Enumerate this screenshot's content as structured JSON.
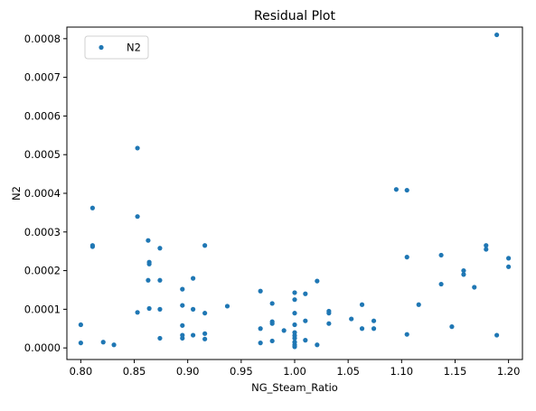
{
  "chart_data": {
    "type": "scatter",
    "title": "Residual Plot",
    "xlabel": "NG_Steam_Ratio",
    "ylabel": "N2",
    "xlim": [
      0.787,
      1.213
    ],
    "ylim": [
      -3e-05,
      0.00083
    ],
    "xticks": [
      0.8,
      0.85,
      0.9,
      0.95,
      1.0,
      1.05,
      1.1,
      1.15,
      1.2
    ],
    "xtick_labels": [
      "0.80",
      "0.85",
      "0.90",
      "0.95",
      "1.00",
      "1.05",
      "1.10",
      "1.15",
      "1.20"
    ],
    "yticks": [
      0.0,
      0.0001,
      0.0002,
      0.0003,
      0.0004,
      0.0005,
      0.0006,
      0.0007,
      0.0008
    ],
    "ytick_labels": [
      "0.0000",
      "0.0001",
      "0.0002",
      "0.0003",
      "0.0004",
      "0.0005",
      "0.0006",
      "0.0007",
      "0.0008"
    ],
    "grid": false,
    "legend_position": "top-left",
    "series": [
      {
        "name": "N2",
        "color": "#1f77b4",
        "points": [
          [
            0.8,
            6e-05
          ],
          [
            0.8,
            1.3e-05
          ],
          [
            0.811,
            0.000362
          ],
          [
            0.811,
            0.000265
          ],
          [
            0.811,
            0.000262
          ],
          [
            0.821,
            1.5e-05
          ],
          [
            0.831,
            8e-06
          ],
          [
            0.853,
            0.000517
          ],
          [
            0.853,
            0.00034
          ],
          [
            0.853,
            9.2e-05
          ],
          [
            0.863,
            0.000278
          ],
          [
            0.864,
            0.000222
          ],
          [
            0.864,
            0.000217
          ],
          [
            0.863,
            0.000175
          ],
          [
            0.864,
            0.000102
          ],
          [
            0.874,
            0.000258
          ],
          [
            0.874,
            0.000175
          ],
          [
            0.874,
            0.0001
          ],
          [
            0.874,
            2.5e-05
          ],
          [
            0.895,
            0.000152
          ],
          [
            0.895,
            0.00011
          ],
          [
            0.895,
            5.8e-05
          ],
          [
            0.895,
            3.3e-05
          ],
          [
            0.895,
            2.5e-05
          ],
          [
            0.905,
            0.00018
          ],
          [
            0.905,
            0.0001
          ],
          [
            0.905,
            3.3e-05
          ],
          [
            0.916,
            0.000265
          ],
          [
            0.916,
            9e-05
          ],
          [
            0.916,
            3.7e-05
          ],
          [
            0.916,
            2.3e-05
          ],
          [
            0.937,
            0.000108
          ],
          [
            0.968,
            0.000147
          ],
          [
            0.968,
            5e-05
          ],
          [
            0.968,
            1.3e-05
          ],
          [
            0.979,
            0.000115
          ],
          [
            0.979,
            6.8e-05
          ],
          [
            0.979,
            6.3e-05
          ],
          [
            0.979,
            1.8e-05
          ],
          [
            0.99,
            4.5e-05
          ],
          [
            1.0,
            0.000143
          ],
          [
            1.0,
            0.000125
          ],
          [
            1.0,
            9e-05
          ],
          [
            1.0,
            6e-05
          ],
          [
            1.0,
            4e-05
          ],
          [
            1.0,
            3.2e-05
          ],
          [
            1.0,
            2.5e-05
          ],
          [
            1.0,
            1.5e-05
          ],
          [
            1.0,
            8e-06
          ],
          [
            1.0,
            3e-06
          ],
          [
            1.01,
            0.00014
          ],
          [
            1.01,
            7e-05
          ],
          [
            1.01,
            2e-05
          ],
          [
            1.021,
            0.000173
          ],
          [
            1.021,
            8e-06
          ],
          [
            1.032,
            9.5e-05
          ],
          [
            1.032,
            9e-05
          ],
          [
            1.032,
            6.3e-05
          ],
          [
            1.053,
            7.5e-05
          ],
          [
            1.063,
            0.000112
          ],
          [
            1.063,
            5e-05
          ],
          [
            1.074,
            7e-05
          ],
          [
            1.074,
            5e-05
          ],
          [
            1.095,
            0.00041
          ],
          [
            1.105,
            0.000408
          ],
          [
            1.105,
            0.000235
          ],
          [
            1.105,
            3.5e-05
          ],
          [
            1.116,
            0.000112
          ],
          [
            1.137,
            0.00024
          ],
          [
            1.137,
            0.000165
          ],
          [
            1.147,
            5.5e-05
          ],
          [
            1.158,
            0.0002
          ],
          [
            1.158,
            0.00019
          ],
          [
            1.168,
            0.000157
          ],
          [
            1.179,
            0.000265
          ],
          [
            1.179,
            0.000255
          ],
          [
            1.189,
            0.00081
          ],
          [
            1.189,
            3.3e-05
          ],
          [
            1.2,
            0.000232
          ],
          [
            1.2,
            0.00021
          ]
        ]
      }
    ]
  }
}
